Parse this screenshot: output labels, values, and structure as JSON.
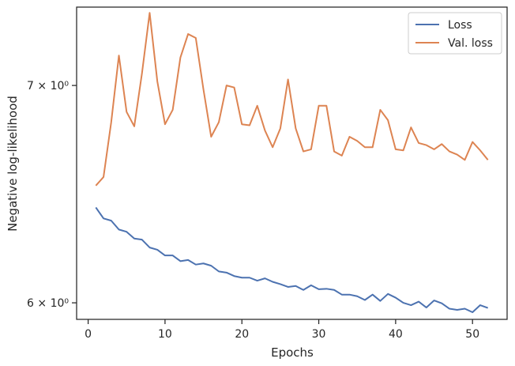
{
  "chart_data": {
    "type": "line",
    "title": "",
    "xlabel": "Epochs",
    "ylabel": "Negative log-likelihood",
    "xlim": [
      -1.5,
      54.5
    ],
    "ylim": [
      5.93,
      7.4
    ],
    "yscale": "log",
    "grid": false,
    "legend_position": "top-right",
    "x_ticks": [
      0,
      10,
      20,
      30,
      40,
      50
    ],
    "x_tick_labels": [
      "0",
      "10",
      "20",
      "30",
      "40",
      "50"
    ],
    "y_ticks": [
      6,
      7
    ],
    "y_tick_labels": [
      "6 × 10⁰",
      "7 × 10⁰"
    ],
    "x": [
      1,
      2,
      3,
      4,
      5,
      6,
      7,
      8,
      9,
      10,
      11,
      12,
      13,
      14,
      15,
      16,
      17,
      18,
      19,
      20,
      21,
      22,
      23,
      24,
      25,
      26,
      27,
      28,
      29,
      30,
      31,
      32,
      33,
      34,
      35,
      36,
      37,
      38,
      39,
      40,
      41,
      42,
      43,
      44,
      45,
      46,
      47,
      48,
      49,
      50,
      51,
      52
    ],
    "series": [
      {
        "name": "Loss",
        "color": "#4c72b0",
        "values": [
          6.42,
          6.37,
          6.36,
          6.32,
          6.31,
          6.28,
          6.275,
          6.24,
          6.23,
          6.205,
          6.205,
          6.18,
          6.185,
          6.165,
          6.17,
          6.16,
          6.135,
          6.13,
          6.115,
          6.108,
          6.108,
          6.095,
          6.105,
          6.09,
          6.08,
          6.068,
          6.072,
          6.055,
          6.075,
          6.058,
          6.06,
          6.055,
          6.035,
          6.035,
          6.028,
          6.012,
          6.035,
          6.008,
          6.038,
          6.022,
          6.0,
          5.99,
          6.005,
          5.98,
          6.01,
          5.998,
          5.975,
          5.97,
          5.975,
          5.96,
          5.99,
          5.978
        ]
      },
      {
        "name": "Val. loss",
        "color": "#dd8452",
        "values": [
          6.52,
          6.56,
          6.82,
          7.15,
          6.87,
          6.8,
          7.06,
          7.37,
          7.02,
          6.81,
          6.88,
          7.14,
          7.26,
          7.24,
          6.98,
          6.75,
          6.82,
          7.0,
          6.99,
          6.81,
          6.805,
          6.9,
          6.78,
          6.7,
          6.79,
          7.03,
          6.79,
          6.68,
          6.69,
          6.9,
          6.9,
          6.68,
          6.66,
          6.75,
          6.73,
          6.7,
          6.7,
          6.88,
          6.83,
          6.69,
          6.685,
          6.795,
          6.72,
          6.71,
          6.69,
          6.715,
          6.68,
          6.665,
          6.64,
          6.725,
          6.685,
          6.64
        ]
      }
    ]
  }
}
